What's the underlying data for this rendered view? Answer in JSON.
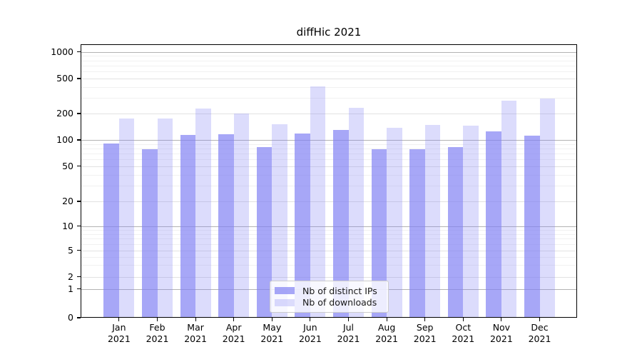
{
  "title": "diffHic 2021",
  "chart_data": {
    "type": "bar",
    "title": "diffHic 2021",
    "categories": [
      "Jan",
      "Feb",
      "Mar",
      "Apr",
      "May",
      "Jun",
      "Jul",
      "Aug",
      "Sep",
      "Oct",
      "Nov",
      "Dec"
    ],
    "category_year": "2021",
    "series": [
      {
        "name": "Nb of distinct IPs",
        "color": "#a6a6f4",
        "fill_rgba": "rgba(130,130,243,0.70)",
        "values": [
          91,
          78,
          114,
          116,
          83,
          118,
          129,
          78,
          78,
          83,
          126,
          112
        ]
      },
      {
        "name": "Nb of downloads",
        "color": "#dcdcf8",
        "fill_rgba": "rgba(130,130,243,0.28)",
        "values": [
          174,
          174,
          230,
          201,
          152,
          410,
          233,
          137,
          148,
          146,
          278,
          295
        ]
      }
    ],
    "yscale": "symlog",
    "ylim": [
      0,
      1260
    ],
    "ytick_values": [
      0,
      1,
      2,
      5,
      10,
      20,
      50,
      100,
      200,
      500,
      1000
    ],
    "ytick_labels": [
      "0",
      "1",
      "2",
      "5",
      "10",
      "20",
      "50",
      "100",
      "200",
      "500",
      "1000"
    ],
    "major_grid_values": [
      1,
      10,
      100,
      1000
    ],
    "minor_grid_values": [
      3,
      4,
      6,
      7,
      8,
      9,
      30,
      40,
      60,
      70,
      80,
      90,
      300,
      400,
      600,
      700,
      800,
      900
    ],
    "grid": "horizontal",
    "legend_position": "lower center",
    "colors": {
      "background": "#ffffff",
      "axis": "#000000",
      "grid_major": "#b3b3b3",
      "grid_labeled": "#e2e2e2",
      "grid_minor": "#f1f1f1",
      "legend_border": "#cccccc"
    }
  }
}
